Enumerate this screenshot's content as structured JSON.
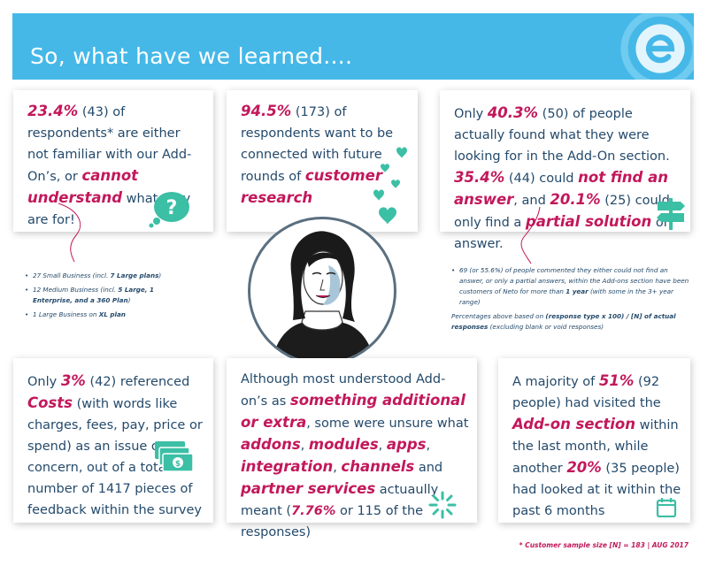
{
  "banner": {
    "title": "So, what have we learned...."
  },
  "card1": {
    "p1": "23.4%",
    "p2": " (43) of respondents* are either not familiar with our Add-On’s, or ",
    "p3": "cannot understand",
    "p4": " what they are for!"
  },
  "card2": {
    "p1": "94.5%",
    "p2": " (173) of respondents want to be connected with future rounds of ",
    "p3": "customer research"
  },
  "card3": {
    "p1": "Only ",
    "p2": "40.3%",
    "p3": " (50) of people actually found what they were looking for in the Add-On section. ",
    "p4": "35.4%",
    "p5": " (44) could ",
    "p6": "not find an answer",
    "p7": ", and ",
    "p8": "20.1%",
    "p9": " (25) could only find a ",
    "p10": "partial solution",
    "p11": " or answer."
  },
  "note_left": {
    "items": [
      {
        "text": "27 Small Business  (incl. ",
        "bold": "7 Large plans",
        "end": ")"
      },
      {
        "text": "12 Medium Business  (incl. ",
        "bold": "5 Large, 1 Enterprise, and a 360 Plan",
        "end": ")"
      },
      {
        "text": "1 Large Business on ",
        "bold": "XL plan",
        "end": ""
      }
    ]
  },
  "note_right": {
    "i1a": "69 (or 55.6%) of people commented they either could not find an answer, or only a partial answers, within the Add-ons section have been customers of Neto for more than ",
    "i1b": "1 year",
    "i1c": " (with some in the 3+ year range)",
    "p1": "Percentages above based on ",
    "p2": "(response type x 100) / [N] of actual responses",
    "p3": " (excluding blank or void responses)"
  },
  "card4": {
    "p1": "Only ",
    "p2": "3%",
    "p3": " (42) referenced ",
    "p4": "Costs",
    "p5": " (with words like charges, fees, pay, price or spend) as an issue or concern, out of a total number of 1417 pieces of feedback within the survey"
  },
  "card5": {
    "p1": "Although most understood Add-on’s as ",
    "p2": "something additional or extra",
    "p3": ", some were unsure what ",
    "p4": "addons",
    "p5": ", ",
    "p6": "modules",
    "p7": ", ",
    "p8": "apps",
    "p9": ",  ",
    "p10": "integration",
    "p11": ", ",
    "p12": "channels",
    "p13": " and ",
    "p14": "partner services",
    "p15": " actuaully meant (",
    "p16": "7.76%",
    "p17": " or 115 of the responses)"
  },
  "card6": {
    "p1": "A majority of ",
    "p2": "51%",
    "p3": " (92 people) had visited the ",
    "p4": "Add-on section",
    "p5": " within the last month, while another ",
    "p6": "20%",
    "p7": " (35 people) had looked at it within the past 6 months"
  },
  "icons": {
    "logo": "neto-e-logo-icon",
    "card1": "question-speech-bubble-icon",
    "card2": "hearts-icon",
    "card3": "signpost-icon",
    "card4": "money-icon",
    "card5": "loading-spinner-icon",
    "card6": "calendar-icon"
  },
  "footer": {
    "text": "* Customer sample size [N] = 183  |  AUG 2017"
  },
  "colors": {
    "banner": "#45b8e8",
    "accent": "#c2185b",
    "text": "#244a6b",
    "icon": "#3bbfa5"
  }
}
